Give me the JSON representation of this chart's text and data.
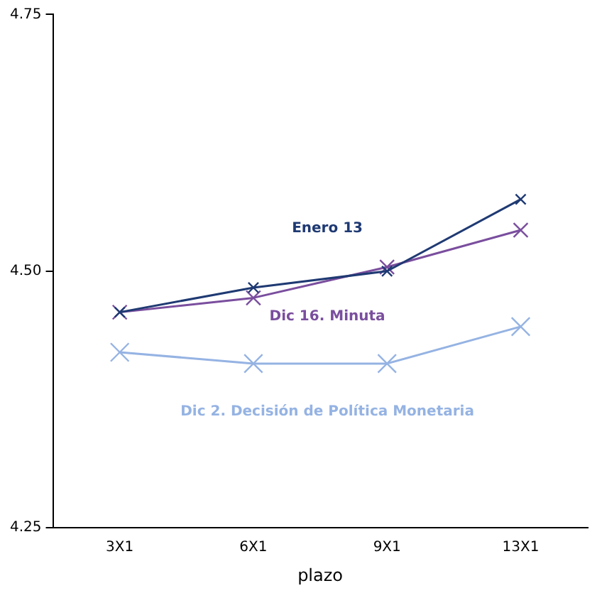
{
  "chart_data": {
    "type": "line",
    "xlabel": "plazo",
    "categories": [
      "3X1",
      "6X1",
      "9X1",
      "13X1"
    ],
    "series": [
      {
        "name": "Enero 13",
        "color": "#1f3a73",
        "values": [
          4.46,
          4.484,
          4.5,
          4.57
        ]
      },
      {
        "name": "Dic 16. Minuta",
        "color": "#7a4e9e",
        "values": [
          4.46,
          4.474,
          4.504,
          4.54
        ]
      },
      {
        "name": "Dic 2. Decisión de Política Monetaria",
        "color": "#95b3e3",
        "values": [
          4.421,
          4.41,
          4.41,
          4.446
        ]
      }
    ],
    "ylim": [
      4.25,
      4.75
    ],
    "yticks": [
      4.25,
      {
        "value": 4.5,
        "label": "4.50"
      },
      4.75
    ],
    "grid": false,
    "legend": false,
    "marker": "cross",
    "line_style": "solid"
  }
}
